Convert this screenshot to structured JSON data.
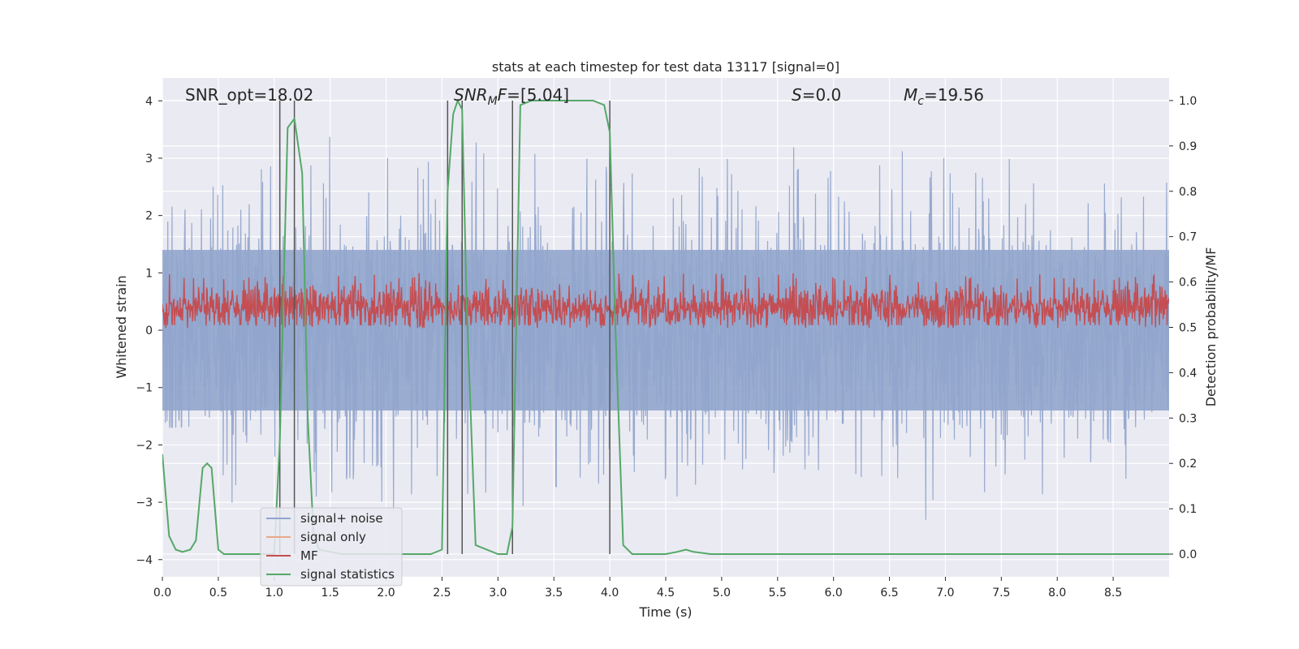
{
  "chart_data": {
    "type": "line",
    "title": "stats at each timestep for test data 13117 [signal=0]",
    "xlabel": "Time (s)",
    "ylabel_left": "Whitened strain",
    "ylabel_right": "Detection probability/MF",
    "xlim": [
      0,
      9.0
    ],
    "ylim_left": [
      -4.3,
      4.4
    ],
    "ylim_right": [
      -0.05,
      1.05
    ],
    "xticks": [
      0.0,
      0.5,
      1.0,
      1.5,
      2.0,
      2.5,
      3.0,
      3.5,
      4.0,
      4.5,
      5.0,
      5.5,
      6.0,
      6.5,
      7.0,
      7.5,
      8.0,
      8.5
    ],
    "yticks_left": [
      4,
      3,
      2,
      1,
      0,
      -1,
      -2,
      -3,
      -4
    ],
    "yticks_left_labels": [
      "4",
      "3",
      "2",
      "1",
      "0",
      "−1",
      "−2",
      "−3",
      "−4"
    ],
    "yticks_right": [
      1.0,
      0.9,
      0.8,
      0.7,
      0.6,
      0.5,
      0.4,
      0.3,
      0.2,
      0.1,
      0.0
    ],
    "grid": true,
    "legend_position": "lower-left",
    "annotations": {
      "snr_opt": "SNR_opt=18.02",
      "snr_mf": "[5.04]",
      "s_value": "=0.0",
      "mc_value": "=19.56"
    },
    "vertical_lines": [
      1.05,
      1.18,
      2.55,
      2.68,
      3.13,
      4.0
    ],
    "series": [
      {
        "name": "signal+ noise",
        "color": "#91a5cc",
        "axis": "left",
        "description": "noise band",
        "envelope_peaks": [
          [
            0.05,
            2.4,
            -1.7
          ],
          [
            0.3,
            3.3,
            -3.1
          ],
          [
            0.55,
            3.6,
            -3.2
          ],
          [
            0.8,
            2.9,
            -2.6
          ],
          [
            1.0,
            3.2,
            -3.0
          ],
          [
            1.2,
            2.2,
            -2.2
          ],
          [
            1.45,
            3.4,
            -2.9
          ],
          [
            1.65,
            3.0,
            -2.6
          ],
          [
            1.9,
            3.3,
            -3.0
          ],
          [
            2.1,
            3.4,
            -3.2
          ],
          [
            2.45,
            3.2,
            -3.4
          ],
          [
            2.7,
            3.3,
            -2.9
          ],
          [
            3.0,
            3.1,
            -3.1
          ],
          [
            3.3,
            3.2,
            -3.4
          ],
          [
            3.55,
            3.2,
            -3.6
          ],
          [
            3.8,
            3.0,
            -3.3
          ],
          [
            4.1,
            3.0,
            -2.9
          ],
          [
            4.4,
            2.9,
            -2.6
          ],
          [
            4.7,
            3.2,
            -3.0
          ],
          [
            5.0,
            3.1,
            -2.6
          ],
          [
            5.3,
            3.1,
            -3.2
          ],
          [
            5.5,
            3.2,
            -2.9
          ],
          [
            5.8,
            2.9,
            -3.0
          ],
          [
            6.1,
            3.2,
            -2.8
          ],
          [
            6.4,
            3.2,
            -3.2
          ],
          [
            6.65,
            3.5,
            -3.4
          ],
          [
            6.9,
            3.3,
            -3.7
          ],
          [
            7.1,
            2.9,
            -3.0
          ],
          [
            7.4,
            3.0,
            -2.9
          ],
          [
            7.6,
            3.0,
            -3.0
          ],
          [
            7.9,
            3.3,
            -3.1
          ],
          [
            8.15,
            3.4,
            -2.9
          ],
          [
            8.4,
            3.1,
            -2.6
          ],
          [
            8.65,
            3.0,
            -2.8
          ],
          [
            8.9,
            3.3,
            -2.4
          ]
        ]
      },
      {
        "name": "signal only",
        "color": "#e9a987",
        "axis": "left"
      },
      {
        "name": "MF",
        "color": "#c44e52",
        "axis": "right",
        "description": "matched filter band between ~0.5 and ~0.62"
      },
      {
        "name": "signal statistics",
        "color": "#55a868",
        "axis": "right",
        "x": [
          0.0,
          0.06,
          0.12,
          0.18,
          0.25,
          0.3,
          0.36,
          0.4,
          0.44,
          0.5,
          0.55,
          0.62,
          0.8,
          1.0,
          1.05,
          1.12,
          1.18,
          1.25,
          1.3,
          1.35,
          1.4,
          1.6,
          2.0,
          2.4,
          2.5,
          2.55,
          2.6,
          2.64,
          2.68,
          2.72,
          2.8,
          3.0,
          3.08,
          3.13,
          3.2,
          3.3,
          3.6,
          3.85,
          3.95,
          4.0,
          4.05,
          4.12,
          4.2,
          4.5,
          4.6,
          4.68,
          4.75,
          4.9,
          5.5,
          6.5,
          7.5,
          8.5,
          9.0
        ],
        "y": [
          0.22,
          0.04,
          0.01,
          0.005,
          0.01,
          0.03,
          0.19,
          0.2,
          0.19,
          0.01,
          0.0,
          0.0,
          0.0,
          0.0,
          0.25,
          0.94,
          0.96,
          0.84,
          0.3,
          0.05,
          0.01,
          0.0,
          0.0,
          0.0,
          0.01,
          0.8,
          0.97,
          1.0,
          0.98,
          0.55,
          0.02,
          0.0,
          0.0,
          0.06,
          0.99,
          1.0,
          1.0,
          1.0,
          0.99,
          0.93,
          0.5,
          0.02,
          0.0,
          0.0,
          0.005,
          0.01,
          0.005,
          0.0,
          0.0,
          0.0,
          0.0,
          0.0,
          0.0
        ]
      }
    ]
  }
}
